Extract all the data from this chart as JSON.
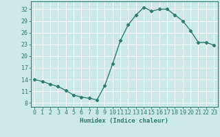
{
  "x": [
    0,
    1,
    2,
    3,
    4,
    5,
    6,
    7,
    8,
    9,
    10,
    11,
    12,
    13,
    14,
    15,
    16,
    17,
    18,
    19,
    20,
    21,
    22,
    23
  ],
  "y": [
    14.0,
    13.5,
    12.8,
    12.2,
    11.2,
    10.0,
    9.5,
    9.2,
    8.8,
    12.5,
    18.0,
    24.0,
    28.0,
    30.5,
    32.5,
    31.5,
    32.0,
    32.0,
    30.5,
    29.0,
    26.5,
    23.5,
    23.5,
    22.8
  ],
  "line_color": "#2e7d6e",
  "marker": "D",
  "marker_size": 2.2,
  "background_color": "#cce8e8",
  "grid_color": "#ffffff",
  "xlabel": "Humidex (Indice chaleur)",
  "xlabel_fontsize": 6.5,
  "yticks": [
    8,
    11,
    14,
    17,
    20,
    23,
    26,
    29,
    32
  ],
  "xticks": [
    0,
    1,
    2,
    3,
    4,
    5,
    6,
    7,
    8,
    9,
    10,
    11,
    12,
    13,
    14,
    15,
    16,
    17,
    18,
    19,
    20,
    21,
    22,
    23
  ],
  "ylim": [
    7,
    34
  ],
  "xlim": [
    -0.5,
    23.5
  ],
  "tick_fontsize": 6.0,
  "line_width": 1.0
}
